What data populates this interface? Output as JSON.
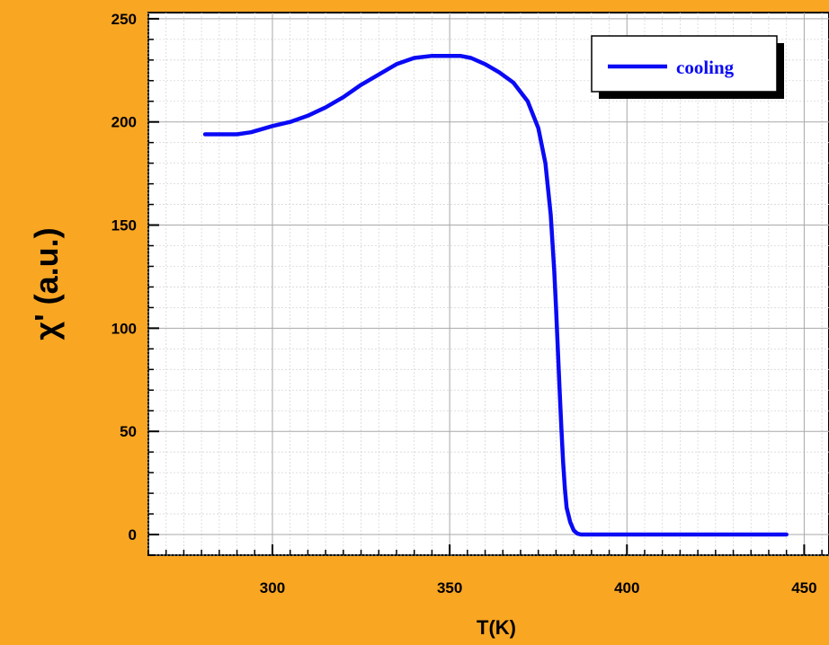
{
  "chart_data": {
    "type": "line",
    "xlabel": "T(K)",
    "ylabel": "χ' (a.u.)",
    "xlim": [
      265,
      457
    ],
    "ylim": [
      -10,
      253
    ],
    "xticks": [
      300,
      350,
      400,
      450
    ],
    "yticks": [
      0,
      50,
      100,
      150,
      200,
      250
    ],
    "x_minor_step": 5,
    "y_minor_step": 10,
    "grid": true,
    "legend_position": "top-right",
    "background_color": "#F9A623",
    "line_color": "#0A0AF5",
    "series": [
      {
        "name": "cooling",
        "x": [
          281,
          285,
          290,
          294,
          300,
          305,
          310,
          315,
          320,
          325,
          330,
          335,
          340,
          345,
          350,
          353,
          356,
          360,
          364,
          368,
          372,
          375,
          377,
          378.5,
          379.5,
          380,
          380.5,
          381,
          381.5,
          382,
          382.5,
          383,
          384,
          385,
          386,
          387,
          390,
          400,
          420,
          445
        ],
        "y": [
          194,
          194,
          194,
          195,
          198,
          200,
          203,
          207,
          212,
          218,
          223,
          228,
          231,
          232,
          232,
          232,
          231,
          228,
          224,
          219,
          210,
          197,
          180,
          155,
          128,
          110,
          90,
          70,
          52,
          35,
          22,
          13,
          6,
          2,
          0.5,
          0,
          0,
          0,
          0,
          0
        ]
      }
    ]
  }
}
